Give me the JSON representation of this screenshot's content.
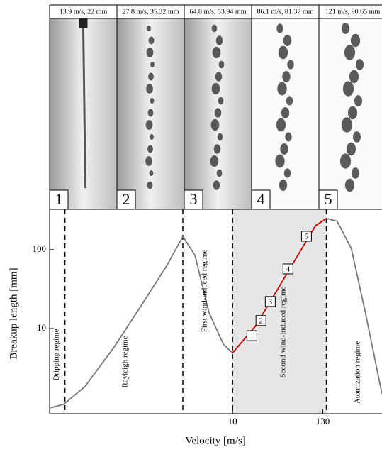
{
  "panels": [
    {
      "caption": "13.9 m/s, 22 mm",
      "number": "1"
    },
    {
      "caption": "27.8 m/s, 35.32 mm",
      "number": "2"
    },
    {
      "caption": "64.8 m/s, 53.94 mm",
      "number": "3"
    },
    {
      "caption": "86.1 m/s, 81.37 mm",
      "number": "4"
    },
    {
      "caption": "121 m/s, 90.65 mm",
      "number": "5"
    }
  ],
  "chart_data": {
    "type": "line",
    "y_label": "Breakup length [mm]",
    "x_label": "Velocity [m/s]",
    "log_x": true,
    "log_y": true,
    "xlim": [
      0.055,
      700
    ],
    "ylim": [
      0.83,
      325
    ],
    "xticks": [
      10,
      130
    ],
    "yticks": [
      10,
      100
    ],
    "series": [
      {
        "color": "#777777",
        "x": [
          0.055,
          0.082,
          0.15,
          0.34,
          0.75,
          1.53,
          2.43,
          3.43,
          5.1,
          7.7,
          10
        ],
        "values": [
          0.98,
          1.09,
          1.83,
          5.7,
          19.8,
          62,
          147,
          85,
          16,
          6.3,
          4.9
        ]
      },
      {
        "color": "#cc0000",
        "x": [
          10,
          19,
          35,
          64,
          106,
          144
        ],
        "values": [
          4.9,
          10.6,
          30,
          85,
          202,
          249
        ]
      },
      {
        "color": "#777777",
        "x": [
          144,
          195,
          292,
          436,
          700
        ],
        "values": [
          249,
          230,
          104,
          16,
          1.48
        ]
      }
    ],
    "regime_boundaries": [
      0.085,
      2.43,
      10,
      144
    ],
    "shaded_region": [
      10,
      144
    ],
    "regimes": [
      "Dripping regime",
      "Rayleigh regime",
      "First wind-induced regime",
      "Second wind-induced regime",
      "Atomization regime"
    ],
    "markers": {
      "labels": [
        "1",
        "2",
        "3",
        "4",
        "5"
      ],
      "x": [
        17.3,
        22.4,
        29.2,
        48.3,
        81.7
      ],
      "y": [
        8.1,
        12.6,
        22,
        57,
        148
      ]
    }
  }
}
